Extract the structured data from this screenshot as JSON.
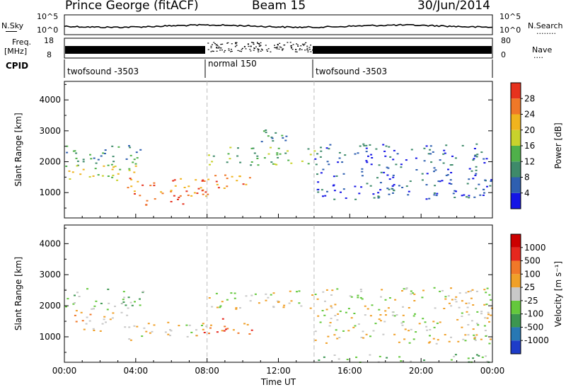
{
  "header": {
    "station": "Prince George (fitACF)",
    "beam": "Beam 15",
    "date": "30/Jun/2014"
  },
  "noise_panel": {
    "left_label": "N.Sky",
    "left_ticks": [
      "10^5",
      "10^0"
    ],
    "right_ticks": [
      "10^5",
      "10^0"
    ],
    "right_label": "N.Search",
    "right_legend_line": "........"
  },
  "freq_panel": {
    "left_label_1": "Freq.",
    "left_label_2": "[MHz]",
    "left_ticks": [
      "18",
      "8"
    ],
    "right_ticks": [
      "80",
      "0"
    ],
    "right_label": "Nave",
    "right_legend_line": "....",
    "cpid_label": "CPID"
  },
  "cpid_segments": [
    {
      "label": "twofsound -3503",
      "start_hour": 0,
      "end_hour": 8
    },
    {
      "label": "normal 150",
      "start_hour": 8,
      "end_hour": 14
    },
    {
      "label": "twofsound -3503",
      "start_hour": 14,
      "end_hour": 24
    }
  ],
  "chart_data": [
    {
      "type": "heatmap",
      "title": "",
      "xlabel": "Time UT",
      "ylabel": "Slant Range [km]",
      "x_tick_labels": [
        "00:00",
        "04:00",
        "08:00",
        "12:00",
        "16:00",
        "20:00",
        "00:00"
      ],
      "x_ticks_hours": [
        0,
        4,
        8,
        12,
        16,
        20,
        24
      ],
      "xlim_hours": [
        0,
        24
      ],
      "y_ticks": [
        1000,
        2000,
        3000,
        4000
      ],
      "ylim": [
        180,
        4600
      ],
      "colorbar": {
        "label": "Power [dB]",
        "tick_labels": [
          "4",
          "8",
          "12",
          "16",
          "20",
          "24",
          "28"
        ],
        "colors": [
          "#1414e6",
          "#2e5fb0",
          "#3e8a6a",
          "#4fb04a",
          "#c8d22c",
          "#f0b41e",
          "#f07828",
          "#e6321e"
        ]
      },
      "vertical_markers_hours": [
        8,
        14
      ],
      "echo_regions": [
        {
          "h0": 0.0,
          "h1": 4.5,
          "r0": 1900,
          "r1": 2600,
          "level": 2
        },
        {
          "h0": 0.0,
          "h1": 4.0,
          "r0": 1300,
          "r1": 1900,
          "level": 4
        },
        {
          "h0": 3.5,
          "h1": 8.5,
          "r0": 900,
          "r1": 1500,
          "level": 6
        },
        {
          "h0": 4.5,
          "h1": 7.0,
          "r0": 600,
          "r1": 900,
          "level": 7
        },
        {
          "h0": 7.0,
          "h1": 10.5,
          "r0": 1000,
          "r1": 1600,
          "level": 6
        },
        {
          "h0": 8.0,
          "h1": 14.0,
          "r0": 1900,
          "r1": 2500,
          "level": 3
        },
        {
          "h0": 10.5,
          "h1": 12.5,
          "r0": 2500,
          "r1": 3100,
          "level": 2
        },
        {
          "h0": 14.0,
          "h1": 24.0,
          "r0": 800,
          "r1": 2600,
          "level": 1
        }
      ]
    },
    {
      "type": "heatmap",
      "title": "",
      "xlabel": "Time UT",
      "ylabel": "Slant Range [km]",
      "x_tick_labels": [
        "00:00",
        "04:00",
        "08:00",
        "12:00",
        "16:00",
        "20:00",
        "00:00"
      ],
      "x_ticks_hours": [
        0,
        4,
        8,
        12,
        16,
        20,
        24
      ],
      "xlim_hours": [
        0,
        24
      ],
      "y_ticks": [
        1000,
        2000,
        3000,
        4000
      ],
      "ylim": [
        180,
        4600
      ],
      "colorbar": {
        "label": "Velocity [m s⁻¹]",
        "tick_labels": [
          "1000",
          "500",
          "100",
          "25",
          "-25",
          "-100",
          "-500",
          "-1000"
        ],
        "colors": [
          "#1e3cc8",
          "#2878b4",
          "#3c9650",
          "#64c83c",
          "#c8c8c8",
          "#f0a028",
          "#f07828",
          "#e6281e",
          "#cc0000"
        ]
      },
      "vertical_markers_hours": [
        8,
        14
      ],
      "echo_regions": [
        {
          "h0": 0.0,
          "h1": 4.5,
          "r0": 1900,
          "r1": 2600,
          "level": 3
        },
        {
          "h0": 0.5,
          "h1": 3.5,
          "r0": 1200,
          "r1": 1900,
          "level": 5
        },
        {
          "h0": 3.5,
          "h1": 8.0,
          "r0": 900,
          "r1": 1500,
          "level": 4
        },
        {
          "h0": 7.5,
          "h1": 10.5,
          "r0": 1100,
          "r1": 1600,
          "level": 6
        },
        {
          "h0": 8.0,
          "h1": 14.0,
          "r0": 1900,
          "r1": 2500,
          "level": 4
        },
        {
          "h0": 14.0,
          "h1": 24.0,
          "r0": 800,
          "r1": 2600,
          "level": 4
        },
        {
          "h0": 14.0,
          "h1": 24.0,
          "r0": 200,
          "r1": 450,
          "level": 3
        }
      ]
    }
  ]
}
